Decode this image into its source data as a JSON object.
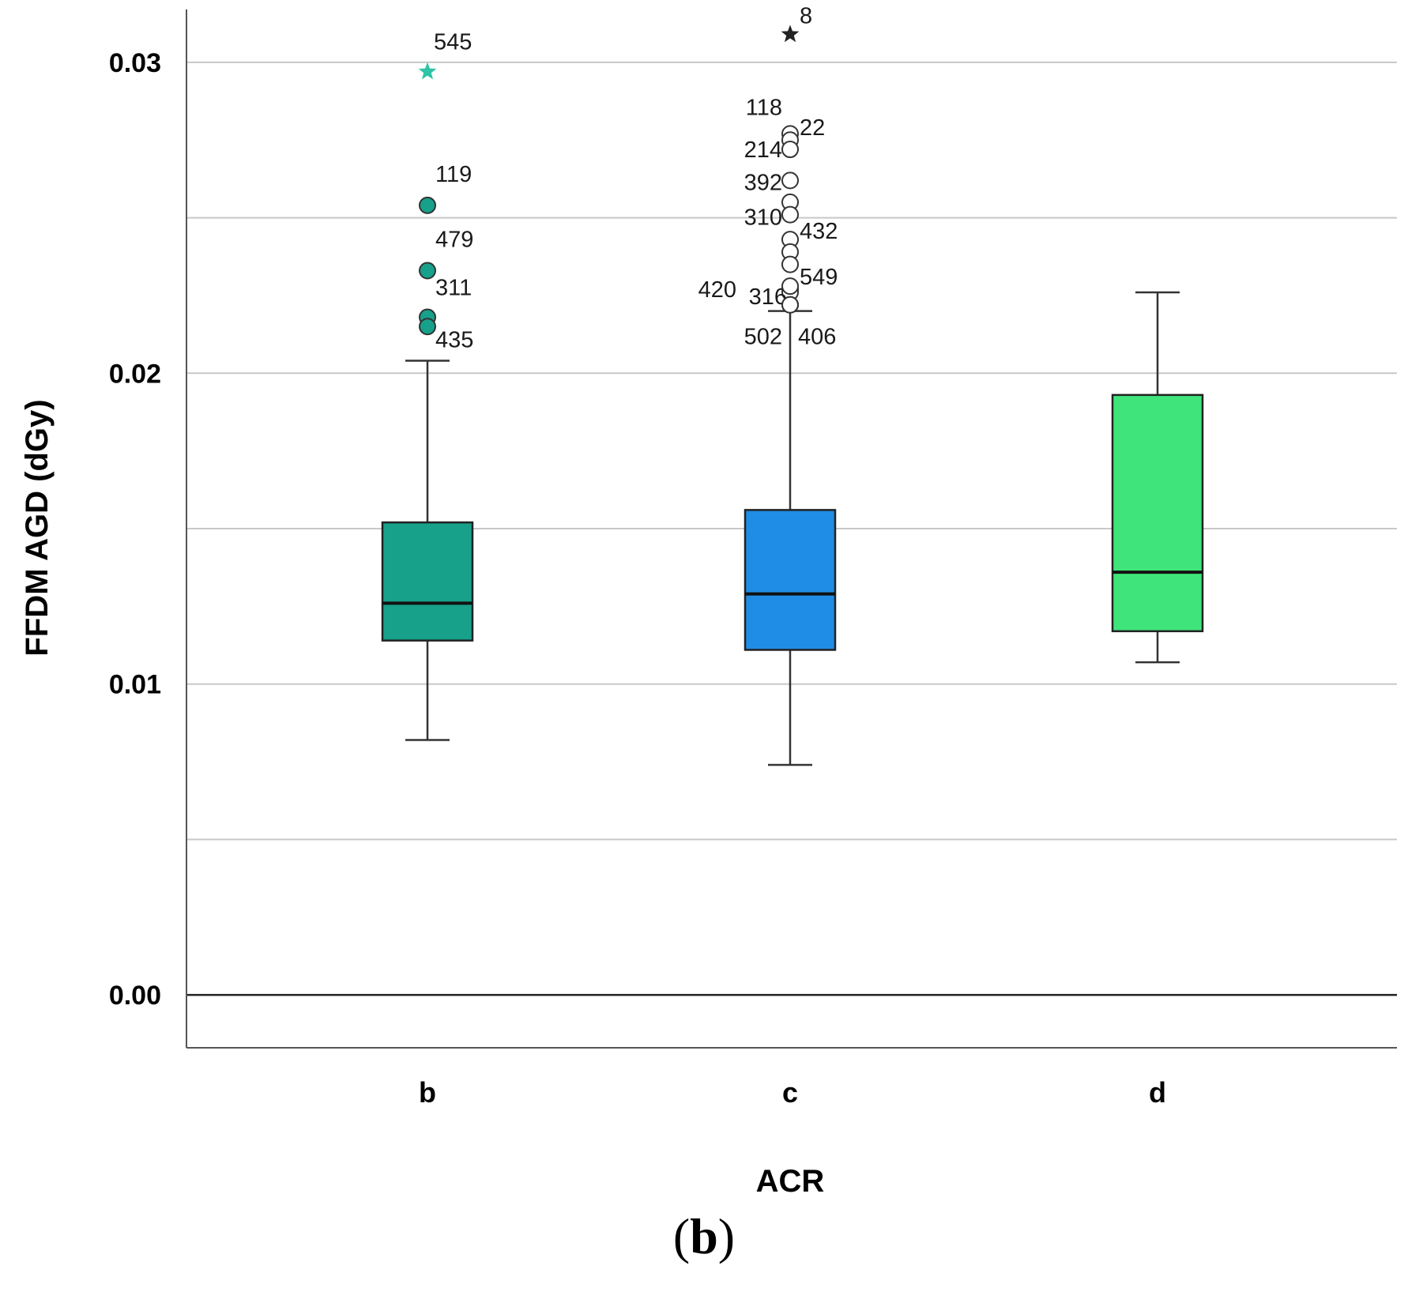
{
  "caption": {
    "open": "(",
    "letter": "b",
    "close": ")"
  },
  "colors": {
    "b": "#17A08A",
    "c": "#1F8DE6",
    "d": "#3FE57A",
    "grid": "#c8c8c8",
    "axis": "#555555"
  },
  "chart_data": {
    "type": "boxplot",
    "xlabel": "ACR",
    "ylabel": "FFDM  AGD (dGy)",
    "ylim": [
      -0.0017,
      0.0317
    ],
    "yticks": [
      0.0,
      0.005,
      0.01,
      0.015,
      0.02,
      0.025,
      0.03
    ],
    "ytick_labels": [
      {
        "value": 0.0,
        "label": "0.00"
      },
      {
        "value": 0.01,
        "label": "0.01"
      },
      {
        "value": 0.02,
        "label": "0.02"
      },
      {
        "value": 0.03,
        "label": "0.03"
      }
    ],
    "categories": [
      "b",
      "c",
      "d"
    ],
    "boxes": [
      {
        "category": "b",
        "whisker_low": 0.0082,
        "q1": 0.0114,
        "median": 0.0126,
        "q3": 0.0152,
        "whisker_high": 0.0204,
        "outliers": [
          {
            "value": 0.0254,
            "label": "119",
            "kind": "circle"
          },
          {
            "value": 0.0233,
            "label": "479",
            "kind": "circle"
          },
          {
            "value": 0.0218,
            "label": "311",
            "kind": "circle"
          },
          {
            "value": 0.0215,
            "label": "435",
            "kind": "circle"
          }
        ],
        "extremes": [
          {
            "value": 0.0297,
            "label": "545",
            "kind": "star"
          }
        ]
      },
      {
        "category": "c",
        "whisker_low": 0.0074,
        "q1": 0.0111,
        "median": 0.0129,
        "q3": 0.0156,
        "whisker_high": 0.022,
        "outliers": [
          {
            "value": 0.0277,
            "label": "118",
            "kind": "circle"
          },
          {
            "value": 0.0275,
            "label": "22",
            "kind": "circle"
          },
          {
            "value": 0.0272,
            "label": "214",
            "kind": "circle"
          },
          {
            "value": 0.0262,
            "label": "392",
            "kind": "circle"
          },
          {
            "value": 0.0255,
            "label": "",
            "kind": "circle"
          },
          {
            "value": 0.0251,
            "label": "310",
            "kind": "circle"
          },
          {
            "value": 0.0243,
            "label": "432",
            "kind": "circle"
          },
          {
            "value": 0.0239,
            "label": "",
            "kind": "circle"
          },
          {
            "value": 0.0235,
            "label": "",
            "kind": "circle"
          },
          {
            "value": 0.0227,
            "label": "420",
            "kind": "circle"
          },
          {
            "value": 0.0226,
            "label": "316",
            "kind": "circle"
          },
          {
            "value": 0.0228,
            "label": "549",
            "kind": "circle"
          },
          {
            "value": 0.0222,
            "label": "502",
            "kind": "circle"
          },
          {
            "value": 0.0222,
            "label": "406",
            "kind": "circle"
          }
        ],
        "extremes": [
          {
            "value": 0.0309,
            "label": "8",
            "kind": "star"
          }
        ]
      },
      {
        "category": "d",
        "whisker_low": 0.0107,
        "q1": 0.0117,
        "median": 0.0136,
        "q3": 0.0193,
        "whisker_high": 0.0226,
        "outliers": [],
        "extremes": []
      }
    ]
  }
}
